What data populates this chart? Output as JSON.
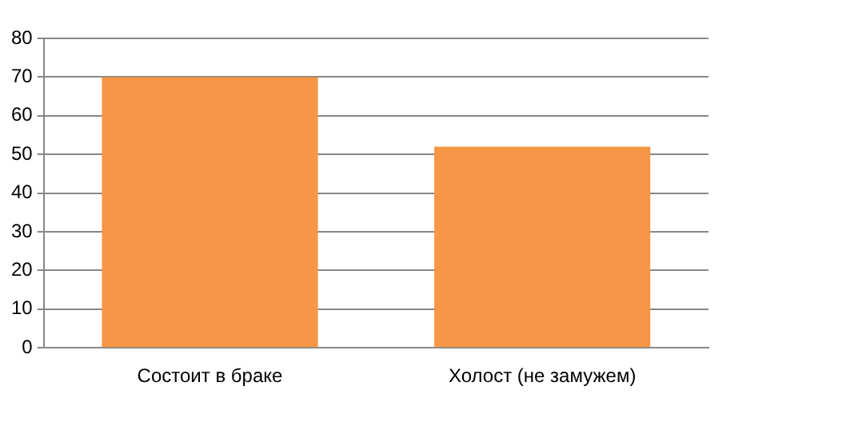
{
  "chart_data": {
    "type": "bar",
    "categories": [
      "Состоит в браке",
      "Холост (не замужем)"
    ],
    "values": [
      70,
      52
    ],
    "color": "#f79646",
    "ylim": [
      0,
      80
    ],
    "yticks": [
      0,
      10,
      20,
      30,
      40,
      50,
      60,
      70,
      80
    ],
    "grid": "y",
    "legend": false
  }
}
